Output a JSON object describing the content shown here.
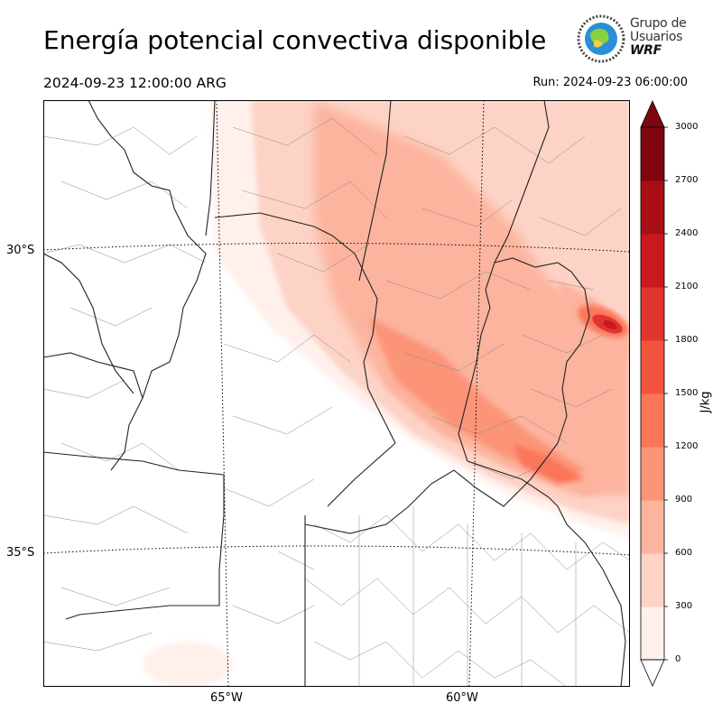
{
  "header": {
    "title": "Energía potencial convectiva disponible",
    "valid_time": "2024-09-23 12:00:00 ARG",
    "run_time": "Run: 2024-09-23 06:00:00"
  },
  "logo": {
    "line1": "Grupo de",
    "line2": "Usuarios",
    "line3": "WRF",
    "colors": {
      "globe": "#2a8fd6",
      "land": "#88d040",
      "ring": "#444444"
    }
  },
  "map": {
    "lat_labels": [
      "30°S",
      "35°S"
    ],
    "lon_labels": [
      "65°W",
      "60°W"
    ],
    "colors": {
      "boundary_major": "#222222",
      "boundary_minor": "#888888",
      "graticule": "#000000"
    }
  },
  "colorbar": {
    "unit": "J/kg",
    "ticks": [
      "3000",
      "2700",
      "2400",
      "2100",
      "1800",
      "1500",
      "1200",
      "900",
      "600",
      "300",
      "0"
    ],
    "levels": [
      0,
      300,
      600,
      900,
      1200,
      1500,
      1800,
      2100,
      2400,
      2700,
      3000
    ],
    "colors": [
      "#fff0ec",
      "#fdd3c5",
      "#fcb49e",
      "#fc9478",
      "#fb7558",
      "#f2543e",
      "#e0352e",
      "#c7191e",
      "#a80f15",
      "#7f0510"
    ],
    "extend": "both"
  }
}
